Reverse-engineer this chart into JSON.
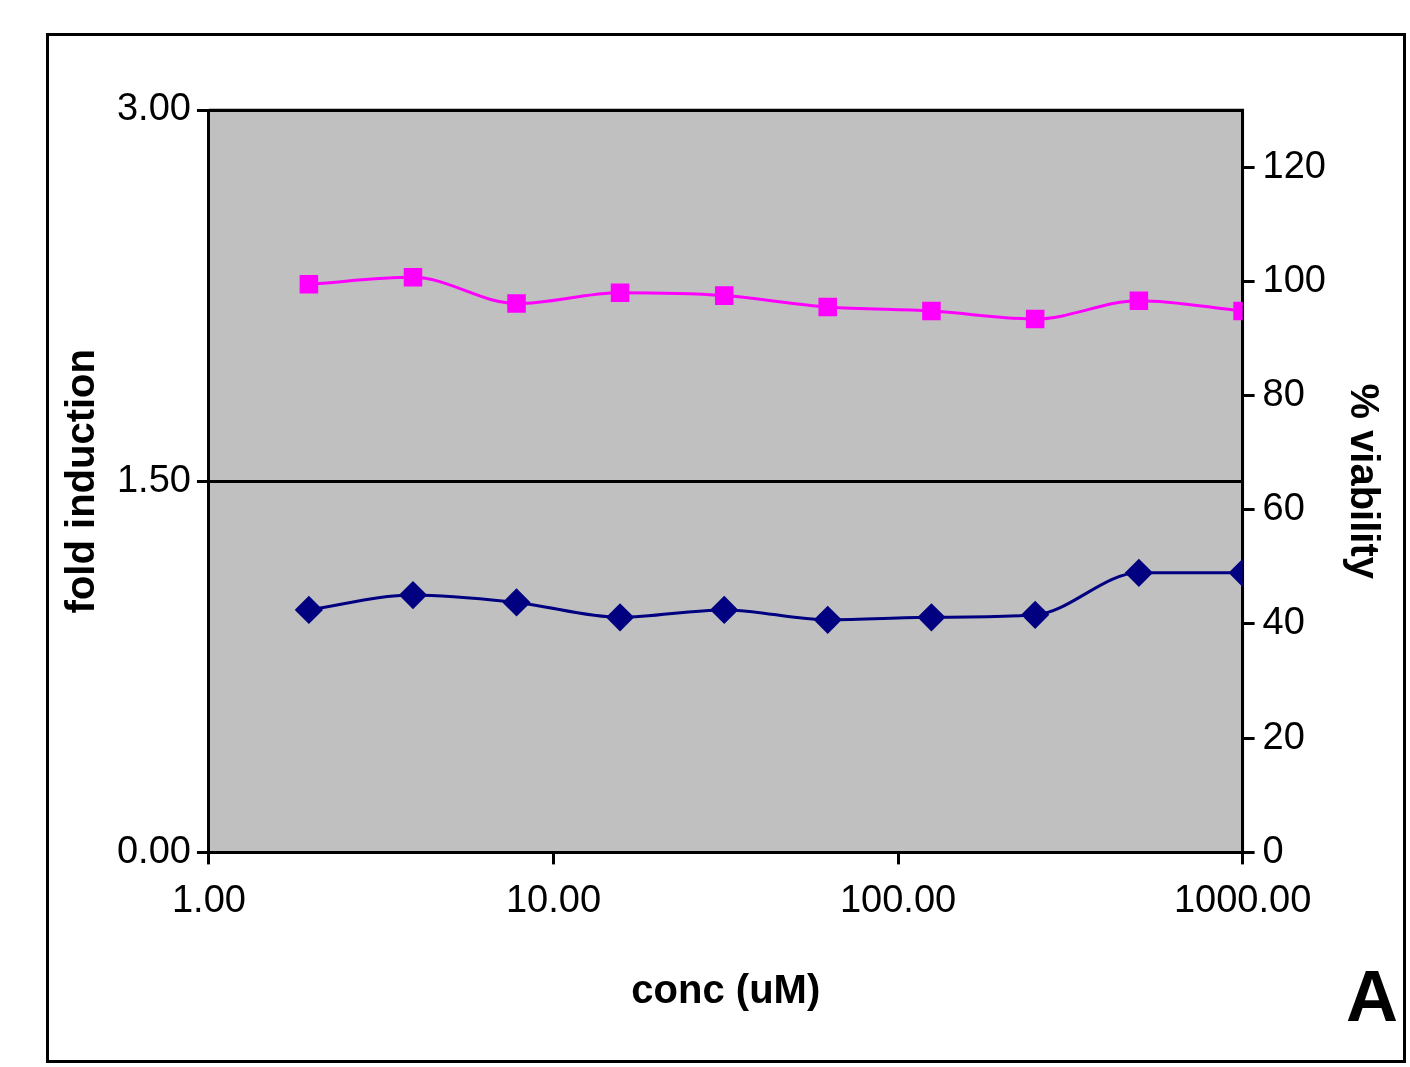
{
  "chart_data": {
    "type": "line",
    "xlabel": "conc (uM)",
    "ylabel": "fold induction",
    "y2label": "% viability",
    "log": "x",
    "xlim": [
      1,
      1000
    ],
    "xticks": [
      {
        "value": 1,
        "label": "1.00"
      },
      {
        "value": 10,
        "label": "10.00"
      },
      {
        "value": 100,
        "label": "100.00"
      },
      {
        "value": 1000,
        "label": "1000.00"
      }
    ],
    "ylim": [
      0,
      3
    ],
    "yticks": [
      {
        "value": 0,
        "label": "0.00"
      },
      {
        "value": 1.5,
        "label": "1.50"
      },
      {
        "value": 3,
        "label": "3.00"
      }
    ],
    "y2lim": [
      0,
      130
    ],
    "y2ticks": [
      0,
      20,
      40,
      60,
      80,
      100,
      120
    ],
    "grid": "y",
    "legend": false,
    "series": [
      {
        "color": "#000080",
        "marker": "diamond",
        "x": [
          1.95,
          3.91,
          7.81,
          15.6,
          31.3,
          62.5,
          125,
          250,
          500,
          1000
        ],
        "values": [
          0.98,
          1.04,
          1.01,
          0.95,
          0.98,
          0.94,
          0.95,
          0.96,
          1.13,
          1.13
        ]
      },
      {
        "color": "#ff00ff",
        "marker": "square",
        "axis": "y2",
        "x": [
          1.95,
          3.91,
          7.81,
          15.6,
          31.3,
          62.5,
          125,
          250,
          500,
          1000
        ],
        "values": [
          99.5,
          100.7,
          96.1,
          98.0,
          97.5,
          95.5,
          94.8,
          93.4,
          96.6,
          94.8
        ]
      }
    ],
    "annotations": [
      "A"
    ]
  }
}
